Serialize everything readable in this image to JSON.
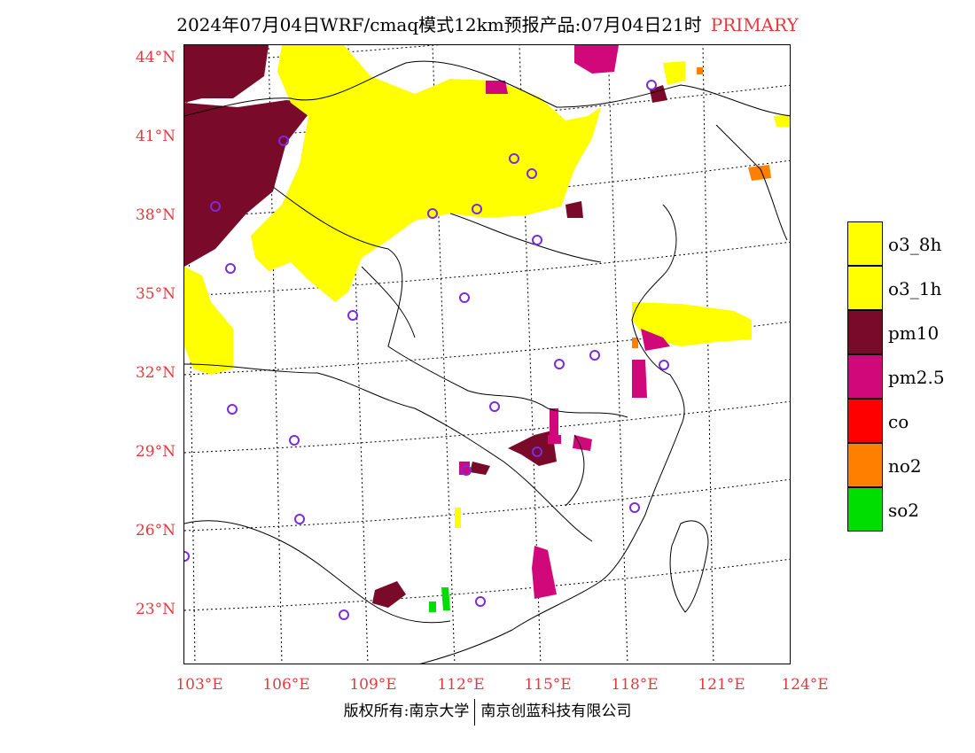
{
  "title": {
    "text": "2024年07月04日WRF/cmaq模式12km预报产品:07月04日21时",
    "tag": "PRIMARY"
  },
  "map": {
    "lat_labels": [
      "44°N",
      "41°N",
      "38°N",
      "35°N",
      "32°N",
      "29°N",
      "26°N",
      "23°N"
    ],
    "lon_labels": [
      "103°E",
      "106°E",
      "109°E",
      "112°E",
      "115°E",
      "118°E",
      "121°E",
      "124°E"
    ],
    "colors": {
      "o3_8h": "#ffff00",
      "o3_1h": "#ffff00",
      "pm10": "#7a0a2a",
      "pm25": "#d1087a",
      "co": "#ff0000",
      "no2": "#ff7f00",
      "so2": "#00dd00",
      "station": "#7b2be0",
      "border": "#000000"
    }
  },
  "legend": [
    {
      "label": "o3_8h",
      "color": "#ffff00"
    },
    {
      "label": "o3_1h",
      "color": "#ffff00"
    },
    {
      "label": "pm10",
      "color": "#7a0a2a"
    },
    {
      "label": "pm2.5",
      "color": "#d1087a"
    },
    {
      "label": "co",
      "color": "#ff0000"
    },
    {
      "label": "no2",
      "color": "#ff7f00"
    },
    {
      "label": "so2",
      "color": "#00dd00"
    }
  ],
  "footer": {
    "left": "版权所有:南京大学",
    "right": "南京创蓝科技有限公司"
  }
}
